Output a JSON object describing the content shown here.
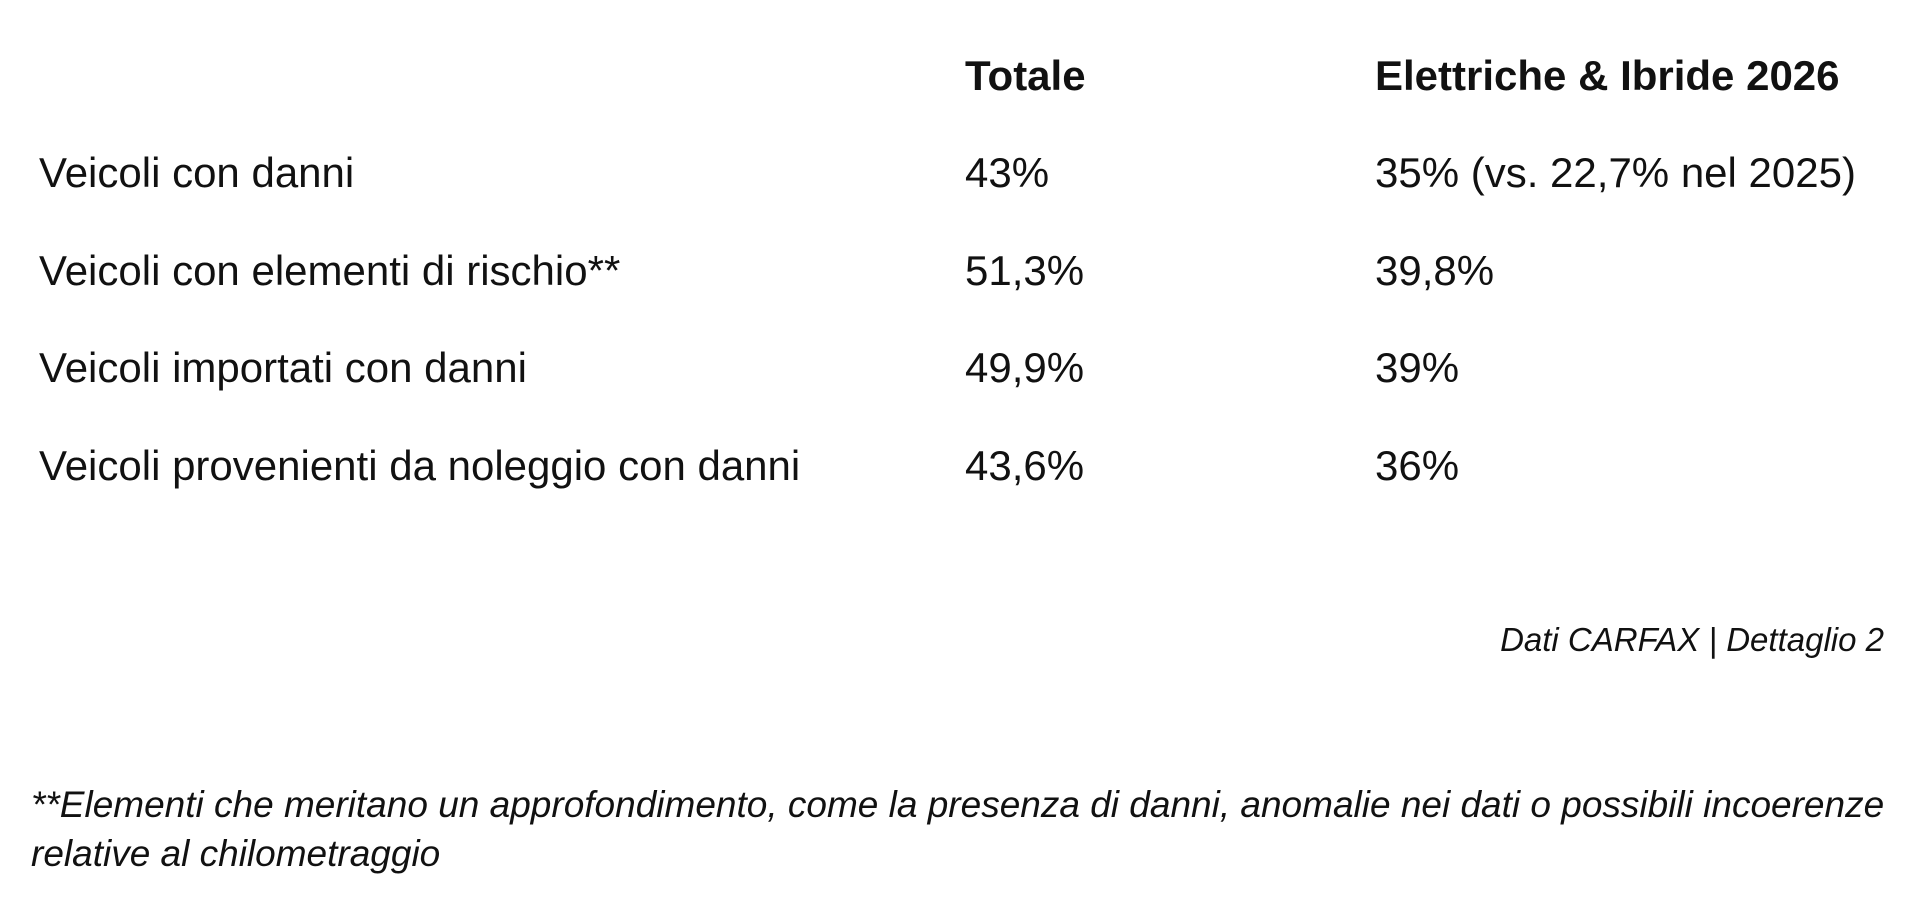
{
  "table": {
    "columns": [
      "Totale",
      "Elettriche & Ibride 2026"
    ],
    "rows": [
      [
        "Veicoli con danni",
        "43%",
        "35% (vs. 22,7% nel 2025)"
      ],
      [
        "Veicoli con elementi di rischio**",
        "51,3%",
        "39,8%"
      ],
      [
        "Veicoli importati con danni",
        "49,9%",
        "39%"
      ],
      [
        "Veicoli provenienti da noleggio con danni",
        "43,6%",
        "36%"
      ]
    ]
  },
  "source": "Dati CARFAX | Dettaglio 2",
  "footnote": "**Elementi che meritano un approfondimento, come la presenza di danni, anomalie nei dati o possibili incoerenze relative al chilometraggio"
}
